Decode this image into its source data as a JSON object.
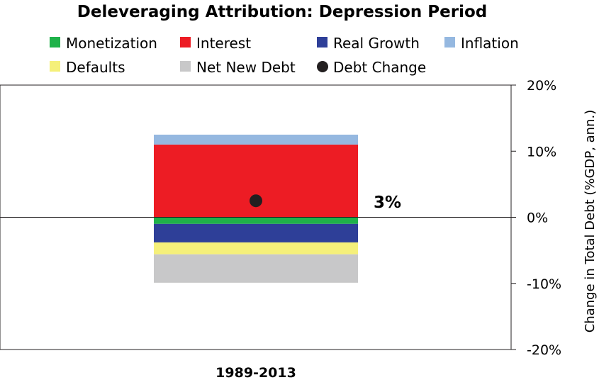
{
  "chart_data": {
    "type": "bar",
    "stacked": true,
    "title": "Deleveraging Attribution: Depression Period",
    "categories": [
      "1989-2013"
    ],
    "ylabel": "Change in Total Debt (%GDP, ann.)",
    "ylim": [
      -20,
      20
    ],
    "yticks": [
      -20,
      -10,
      0,
      10,
      20
    ],
    "ytick_labels": [
      "-20%",
      "-10%",
      "0%",
      "10%",
      "20%"
    ],
    "y_axis_side": "right",
    "grid": false,
    "legend_position": "top",
    "series": [
      {
        "name": "Monetization",
        "color": "#1fb24a",
        "values": [
          -1.0
        ]
      },
      {
        "name": "Interest",
        "color": "#ed1c24",
        "values": [
          11.0
        ]
      },
      {
        "name": "Real Growth",
        "color": "#2e3f98",
        "values": [
          -2.8
        ]
      },
      {
        "name": "Inflation",
        "color": "#95b8e0",
        "values": [
          1.5
        ]
      },
      {
        "name": "Defaults",
        "color": "#f5f07a",
        "values": [
          -1.8
        ]
      },
      {
        "name": "Net New Debt",
        "color": "#c8c8c9",
        "values": [
          -4.3
        ]
      }
    ],
    "markers": [
      {
        "name": "Debt Change",
        "color": "#231f20",
        "values": [
          2.5
        ],
        "label": "3%"
      }
    ]
  }
}
